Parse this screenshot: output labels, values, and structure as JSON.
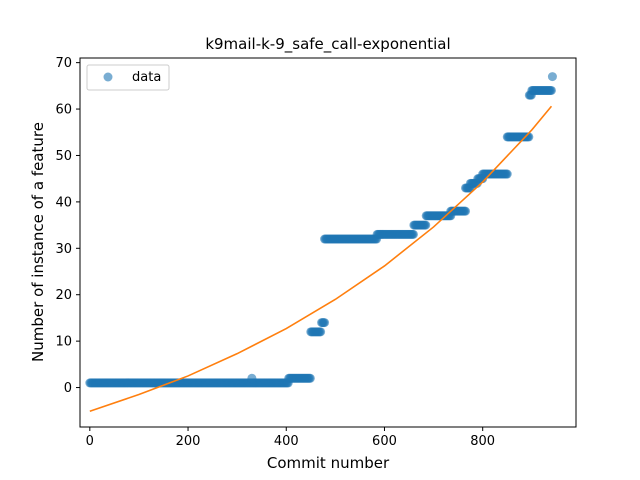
{
  "chart_data": {
    "type": "scatter",
    "title": "k9mail-k-9_safe_call-exponential",
    "xlabel": "Commit number",
    "ylabel": "Number of instance of a feature",
    "xlim": [
      -20,
      990
    ],
    "ylim": [
      -8.5,
      71
    ],
    "xticks": [
      0,
      200,
      400,
      600,
      800
    ],
    "yticks": [
      0,
      10,
      20,
      30,
      40,
      50,
      60,
      70
    ],
    "legend": {
      "position": "top-left",
      "entries": [
        "data"
      ]
    },
    "grid": false,
    "colors": {
      "points": "#1f77b4",
      "fit": "#ff7f0e"
    },
    "series": [
      {
        "name": "data",
        "kind": "scatter",
        "segments": [
          {
            "x0": 0,
            "x1": 405,
            "y": 1
          },
          {
            "x0": 405,
            "x1": 450,
            "y": 2
          },
          {
            "x0": 450,
            "x1": 470,
            "y": 12
          },
          {
            "x0": 472,
            "x1": 478,
            "y": 14
          },
          {
            "x0": 478,
            "x1": 585,
            "y": 32
          },
          {
            "x0": 585,
            "x1": 660,
            "y": 33
          },
          {
            "x0": 660,
            "x1": 685,
            "y": 35
          },
          {
            "x0": 685,
            "x1": 735,
            "y": 37
          },
          {
            "x0": 735,
            "x1": 765,
            "y": 38
          },
          {
            "x0": 765,
            "x1": 775,
            "y": 43
          },
          {
            "x0": 775,
            "x1": 790,
            "y": 44
          },
          {
            "x0": 790,
            "x1": 800,
            "y": 45
          },
          {
            "x0": 800,
            "x1": 850,
            "y": 46
          },
          {
            "x0": 850,
            "x1": 895,
            "y": 54
          },
          {
            "x0": 895,
            "x1": 900,
            "y": 63
          },
          {
            "x0": 900,
            "x1": 940,
            "y": 64
          }
        ],
        "extra_points": [
          {
            "x": 330,
            "y": 2
          },
          {
            "x": 942,
            "y": 67
          }
        ]
      },
      {
        "kind": "line",
        "fit": "exponential",
        "points": [
          [
            0,
            -5.1
          ],
          [
            100,
            -1.5
          ],
          [
            200,
            2.5
          ],
          [
            300,
            7.3
          ],
          [
            400,
            12.7
          ],
          [
            500,
            19.0
          ],
          [
            600,
            26.2
          ],
          [
            700,
            34.6
          ],
          [
            800,
            44.3
          ],
          [
            900,
            55.5
          ],
          [
            940,
            60.6
          ]
        ]
      }
    ]
  }
}
